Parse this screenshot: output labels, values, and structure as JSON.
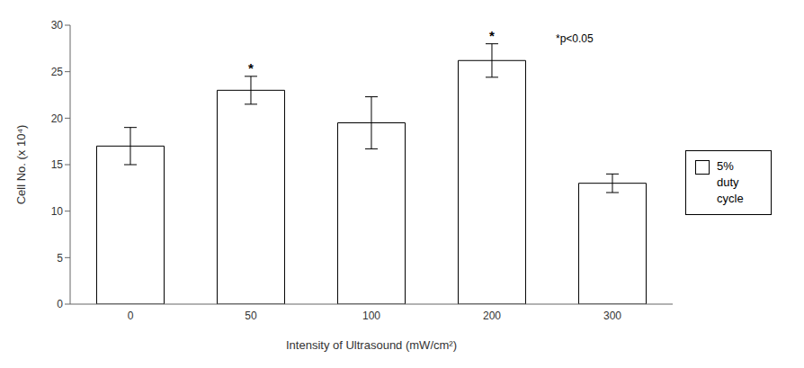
{
  "chart_data": {
    "type": "bar",
    "xlabel": "Intensity of Ultrasound (mW/cm²)",
    "ylabel": "Cell No. (x 10⁴)",
    "categories": [
      "0",
      "50",
      "100",
      "200",
      "300"
    ],
    "series": [
      {
        "name": "5%\nduty\ncycle",
        "color": "#ffffff",
        "values": [
          17.0,
          23.0,
          19.5,
          26.2,
          13.0
        ],
        "errors": [
          2.0,
          1.5,
          2.8,
          1.8,
          1.0
        ],
        "significance_labels": [
          null,
          "*",
          null,
          "*",
          null
        ]
      }
    ],
    "annotations": [
      "*p<0.05"
    ],
    "ylim": [
      0,
      30
    ],
    "yticks": [
      0,
      5,
      10,
      15,
      20,
      25,
      30
    ],
    "grid": false,
    "legend": "right"
  }
}
